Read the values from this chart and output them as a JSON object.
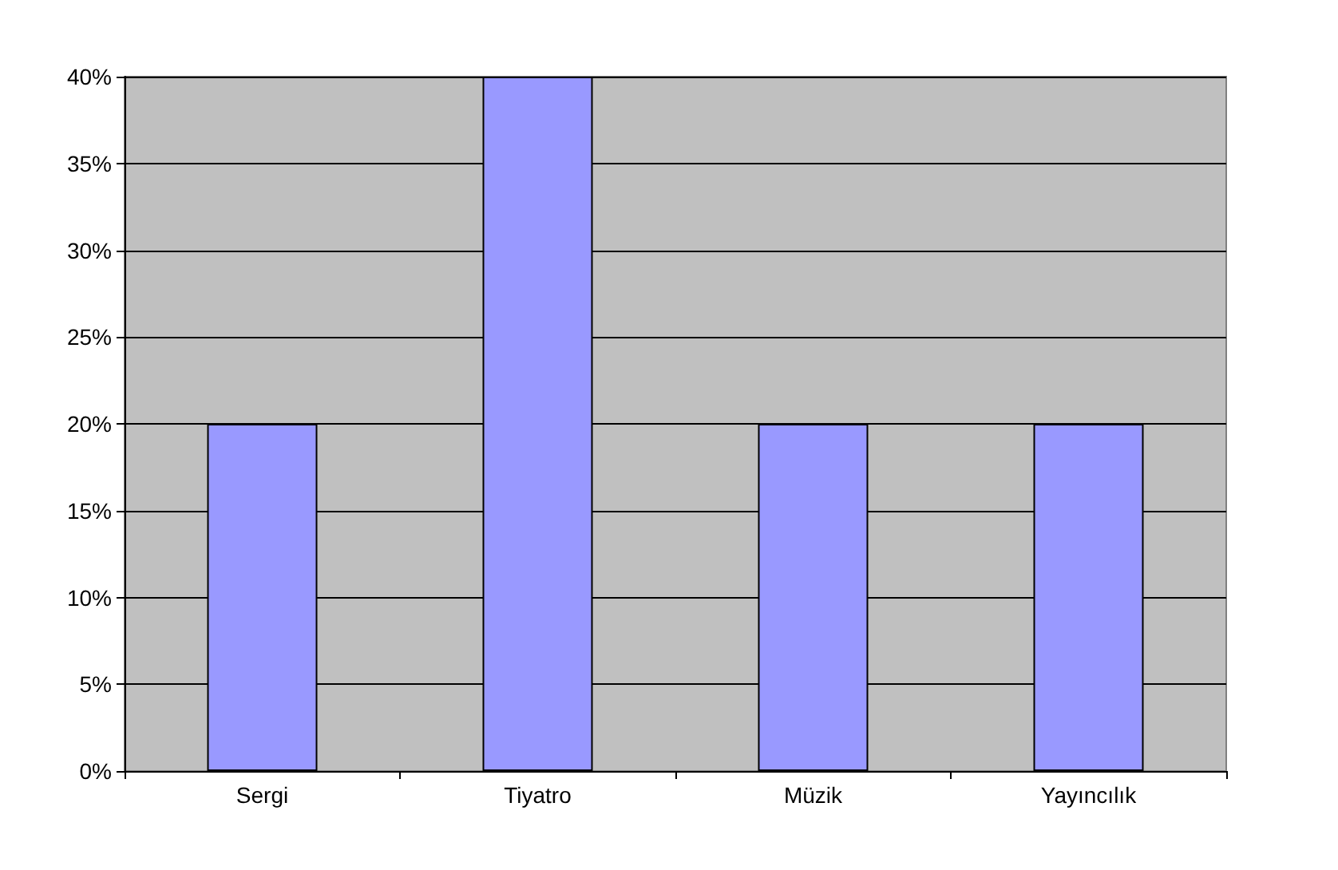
{
  "chart_data": {
    "type": "bar",
    "categories": [
      "Sergi",
      "Tiyatro",
      "Müzik",
      "Yayıncılık"
    ],
    "values": [
      20,
      40,
      20,
      20
    ],
    "color": "#9999ff",
    "ylim": [
      0,
      40
    ],
    "yticks": [
      {
        "value": 0,
        "label": "0%"
      },
      {
        "value": 5,
        "label": "5%"
      },
      {
        "value": 10,
        "label": "10%"
      },
      {
        "value": 15,
        "label": "15%"
      },
      {
        "value": 20,
        "label": "20%"
      },
      {
        "value": 25,
        "label": "25%"
      },
      {
        "value": 30,
        "label": "30%"
      },
      {
        "value": 35,
        "label": "35%"
      },
      {
        "value": 40,
        "label": "40%"
      }
    ],
    "grid": "y"
  }
}
